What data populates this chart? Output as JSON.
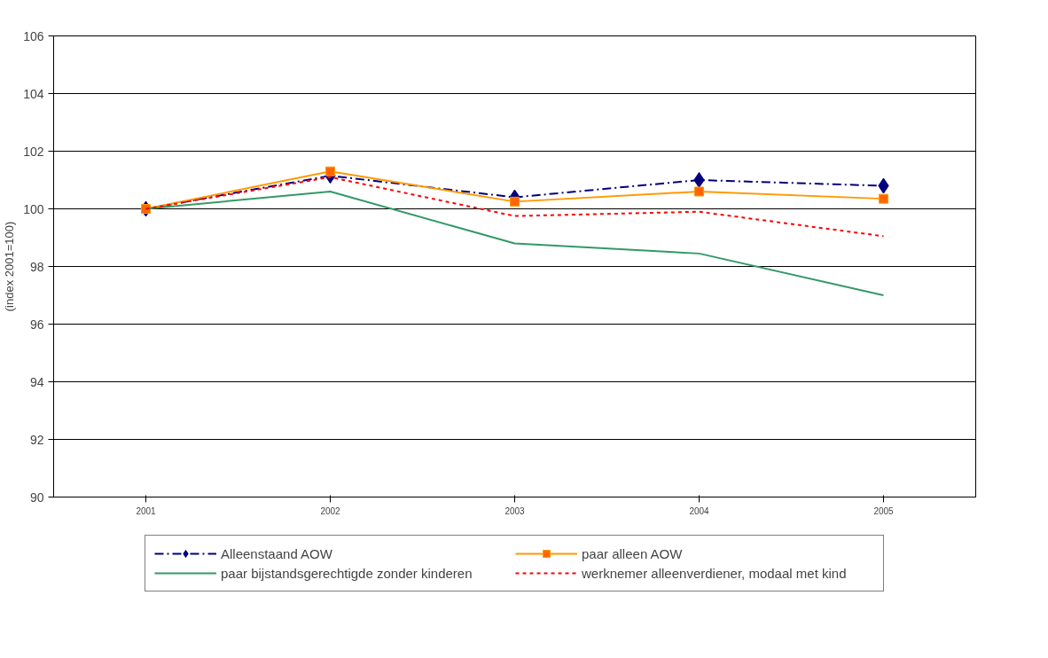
{
  "chart_data": {
    "type": "line",
    "ylabel": "(index 2001=100)",
    "categories": [
      "2001",
      "2002",
      "2003",
      "2004",
      "2005"
    ],
    "series": [
      {
        "name": "Alleenstaand AOW",
        "color": "#000080",
        "values": [
          100,
          101.15,
          100.4,
          101.0,
          100.8
        ],
        "marker": "diamond",
        "line_style": "dashed"
      },
      {
        "name": "paar alleen AOW",
        "color": "#ff9900",
        "values": [
          100,
          101.3,
          100.25,
          100.6,
          100.35
        ],
        "marker": "square",
        "line_style": "solid"
      },
      {
        "name": "paar bijstandsgerechtigde zonder kinderen",
        "color": "#339966",
        "values": [
          100,
          100.6,
          98.8,
          98.45,
          97.0
        ],
        "marker": "none",
        "line_style": "solid"
      },
      {
        "name": "werknemer alleenverdiener, modaal met kind",
        "color": "#ff0000",
        "values": [
          100,
          101.1,
          99.75,
          99.9,
          99.05
        ],
        "marker": "none",
        "line_style": "dotted"
      }
    ],
    "ylim": [
      90,
      106
    ],
    "yticks": [
      90,
      92,
      94,
      96,
      98,
      100,
      102,
      104,
      106
    ],
    "grid": "y",
    "legend": "bottom"
  }
}
